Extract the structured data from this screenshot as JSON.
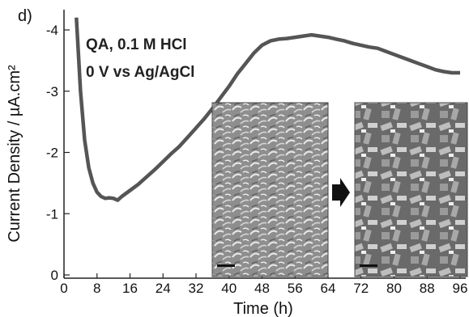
{
  "chart_data": {
    "type": "line",
    "panel_label": "d)",
    "title": "",
    "xlabel": "Time (h)",
    "ylabel": "Current Density / µA.cm²",
    "xlim": [
      0,
      96
    ],
    "ylim": [
      0,
      -4.2
    ],
    "x_ticks": [
      "0",
      "8",
      "16",
      "24",
      "32",
      "40",
      "48",
      "56",
      "64",
      "72",
      "80",
      "88",
      "96"
    ],
    "y_ticks": [
      "0",
      "-1",
      "-2",
      "-3",
      "-4"
    ],
    "annotations": [
      "QA, 0.1 M HCl",
      "0 V vs Ag/AgCl"
    ],
    "grid": false,
    "line_color": "#555555",
    "series": [
      {
        "x": [
          3,
          4,
          5,
          6,
          7,
          8,
          9,
          10,
          11,
          12,
          13,
          14,
          16,
          18,
          20,
          22,
          24,
          26,
          28,
          30,
          32,
          34,
          36,
          38,
          40,
          42,
          44,
          46,
          48,
          50,
          52,
          54,
          56,
          58,
          60,
          62,
          64,
          66,
          68,
          70,
          72,
          74,
          76,
          78,
          80,
          82,
          84,
          86,
          88,
          90,
          92,
          94,
          96
        ],
        "y": [
          -4.2,
          -3.0,
          -2.2,
          -1.75,
          -1.5,
          -1.35,
          -1.28,
          -1.25,
          -1.26,
          -1.25,
          -1.22,
          -1.28,
          -1.38,
          -1.48,
          -1.6,
          -1.72,
          -1.85,
          -1.98,
          -2.1,
          -2.25,
          -2.4,
          -2.55,
          -2.72,
          -2.9,
          -3.08,
          -3.28,
          -3.45,
          -3.62,
          -3.75,
          -3.82,
          -3.85,
          -3.86,
          -3.88,
          -3.9,
          -3.92,
          -3.9,
          -3.88,
          -3.85,
          -3.82,
          -3.78,
          -3.75,
          -3.72,
          -3.7,
          -3.65,
          -3.6,
          -3.55,
          -3.5,
          -3.45,
          -3.4,
          -3.35,
          -3.32,
          -3.3,
          -3.3
        ]
      }
    ]
  },
  "insets": [
    {
      "name": "sem-inset-before",
      "description_label": ""
    },
    {
      "name": "sem-inset-after",
      "description_label": ""
    }
  ]
}
